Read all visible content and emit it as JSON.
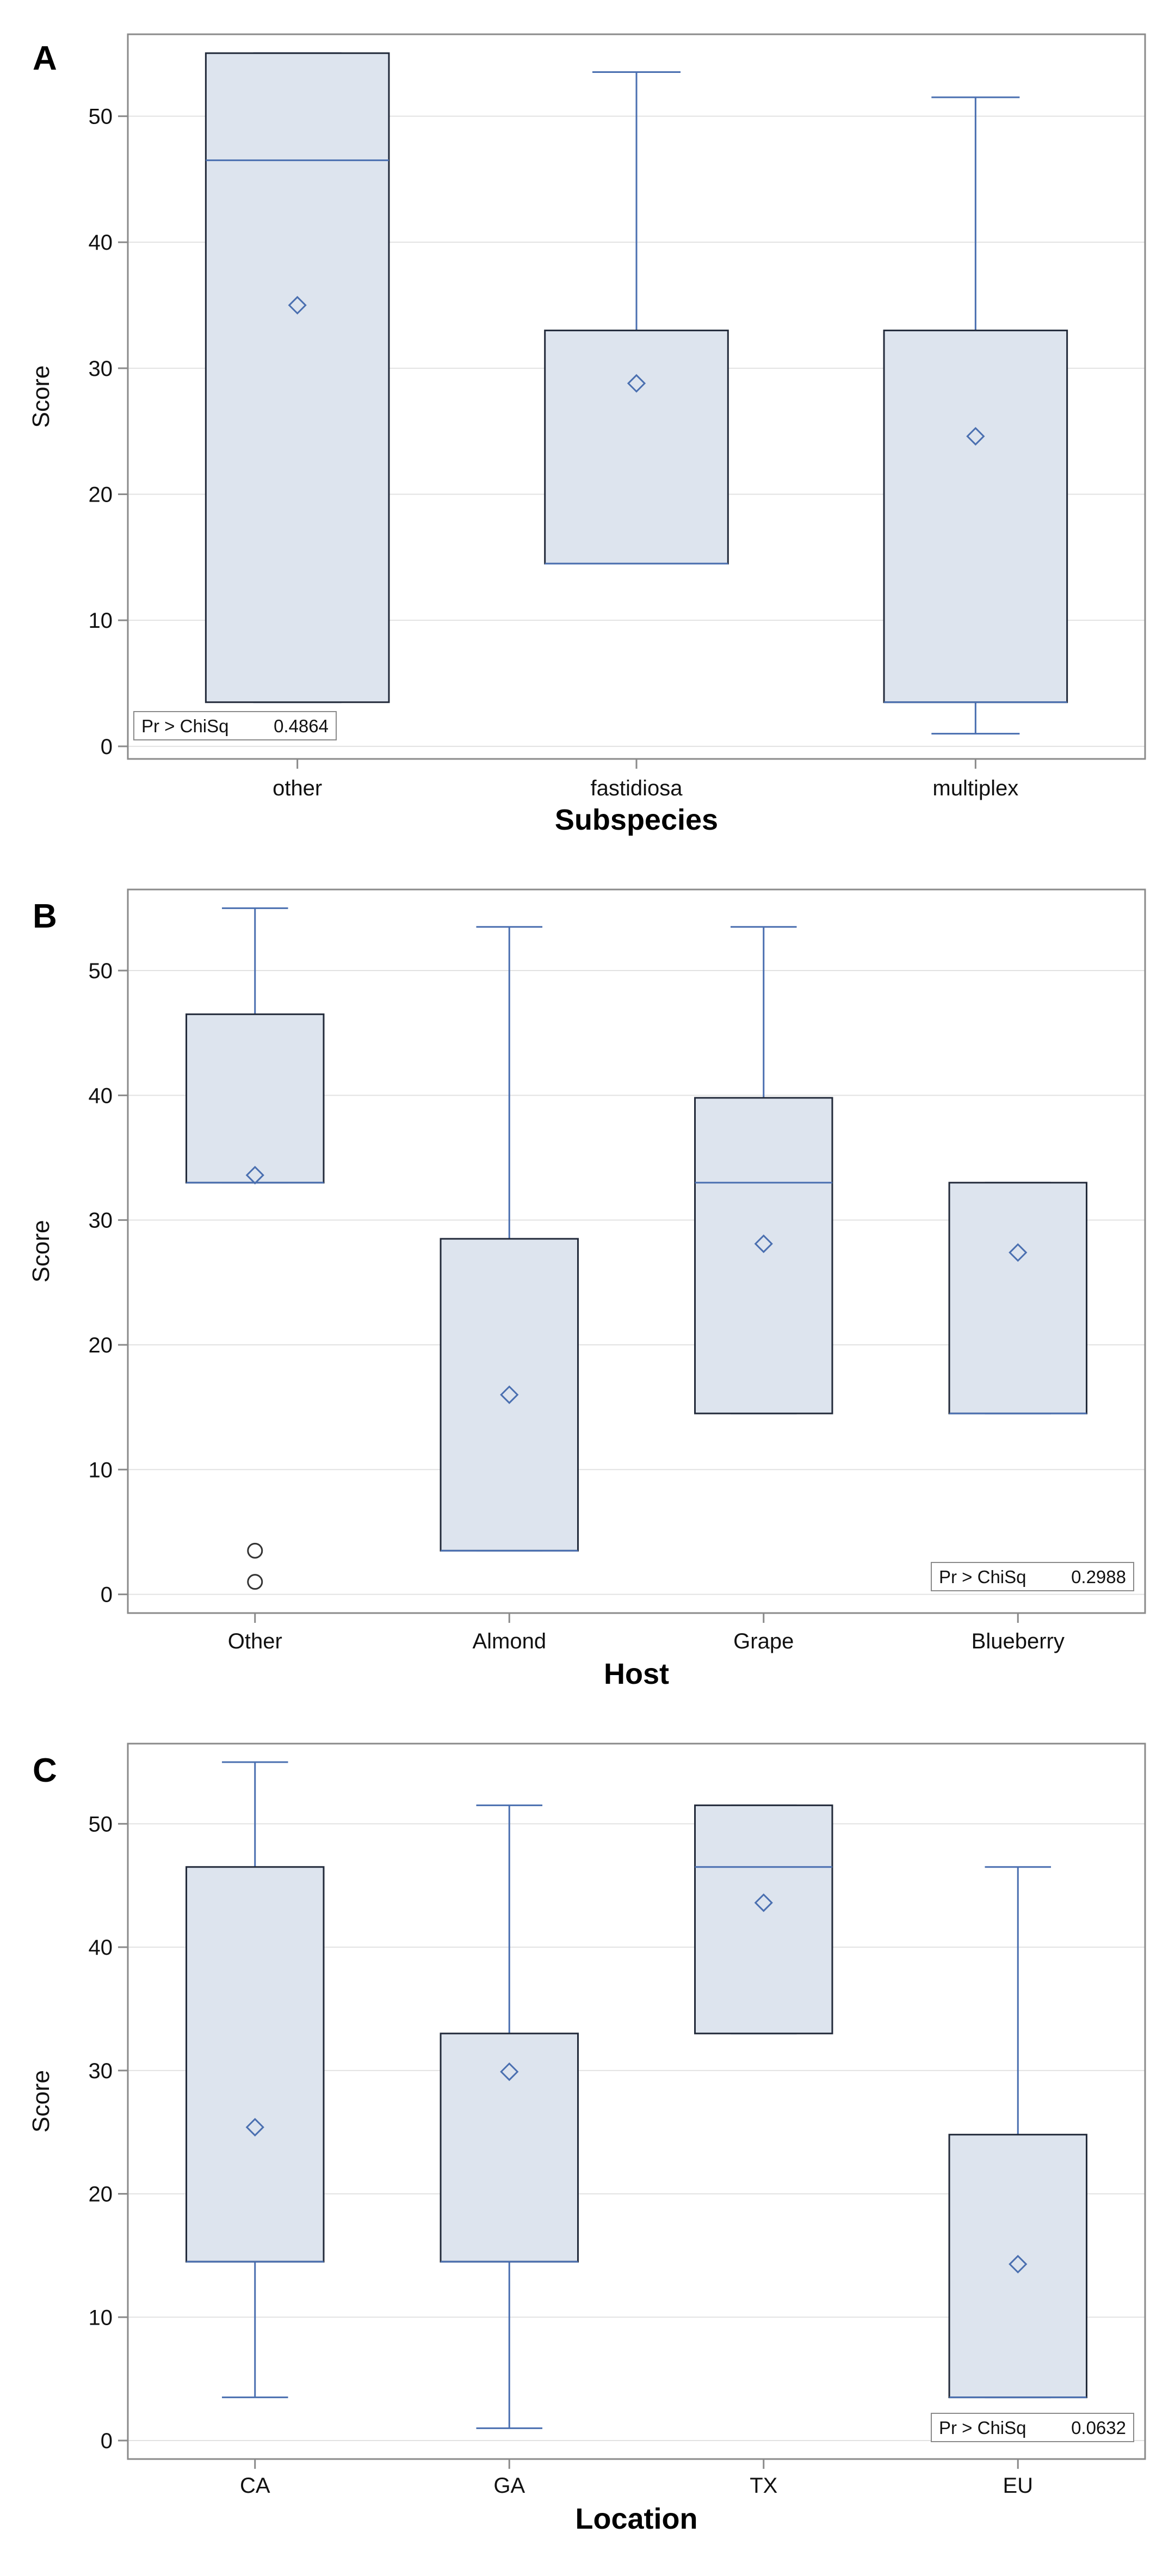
{
  "chart_data": [
    {
      "type": "box",
      "panel_label": "A",
      "xlabel": "Subspecies",
      "ylabel": "Score",
      "ylim": [
        -1,
        56.5
      ],
      "yticks": [
        0,
        10,
        20,
        30,
        40,
        50
      ],
      "grid": true,
      "categories": [
        "other",
        "fastidiosa",
        "multiplex"
      ],
      "boxes": [
        {
          "category": "other",
          "whisker_low": 3.5,
          "q1": 3.5,
          "median": 46.5,
          "q3": 55,
          "whisker_high": 55,
          "mean": 35
        },
        {
          "category": "fastidiosa",
          "whisker_low": 14.5,
          "q1": 14.5,
          "median": 14.5,
          "q3": 33,
          "whisker_high": 53.5,
          "mean": 28.8
        },
        {
          "category": "multiplex",
          "whisker_low": 1,
          "q1": 3.5,
          "median": 3.5,
          "q3": 33,
          "whisker_high": 51.5,
          "mean": 24.6
        }
      ],
      "outliers": [],
      "stat_label": "Pr > ChiSq",
      "stat_value": "0.4864",
      "stat_position": "bottom-left"
    },
    {
      "type": "box",
      "panel_label": "B",
      "xlabel": "Host",
      "ylabel": "Score",
      "ylim": [
        -1.5,
        56.5
      ],
      "yticks": [
        0,
        10,
        20,
        30,
        40,
        50
      ],
      "grid": true,
      "categories": [
        "Other",
        "Almond",
        "Grape",
        "Blueberry"
      ],
      "boxes": [
        {
          "category": "Other",
          "whisker_low": 33,
          "q1": 33,
          "median": 33,
          "q3": 46.5,
          "whisker_high": 55,
          "mean": 33.6
        },
        {
          "category": "Almond",
          "whisker_low": 3.5,
          "q1": 3.5,
          "median": 3.5,
          "q3": 28.5,
          "whisker_high": 53.5,
          "mean": 16
        },
        {
          "category": "Grape",
          "whisker_low": 14.5,
          "q1": 14.5,
          "median": 33,
          "q3": 39.8,
          "whisker_high": 53.5,
          "mean": 28.1
        },
        {
          "category": "Blueberry",
          "whisker_low": 14.5,
          "q1": 14.5,
          "median": 14.5,
          "q3": 33,
          "whisker_high": 33,
          "mean": 27.4
        }
      ],
      "outliers": [
        {
          "category": "Other",
          "value": 3.5
        },
        {
          "category": "Other",
          "value": 1
        }
      ],
      "stat_label": "Pr > ChiSq",
      "stat_value": "0.2988",
      "stat_position": "bottom-right"
    },
    {
      "type": "box",
      "panel_label": "C",
      "xlabel": "Location",
      "ylabel": "Score",
      "ylim": [
        -1.5,
        56.5
      ],
      "yticks": [
        0,
        10,
        20,
        30,
        40,
        50
      ],
      "grid": true,
      "categories": [
        "CA",
        "GA",
        "TX",
        "EU"
      ],
      "boxes": [
        {
          "category": "CA",
          "whisker_low": 3.5,
          "q1": 14.5,
          "median": 14.5,
          "q3": 46.5,
          "whisker_high": 55,
          "mean": 25.4
        },
        {
          "category": "GA",
          "whisker_low": 1,
          "q1": 14.5,
          "median": 14.5,
          "q3": 33,
          "whisker_high": 51.5,
          "mean": 29.9
        },
        {
          "category": "TX",
          "whisker_low": 33,
          "q1": 33,
          "median": 46.5,
          "q3": 51.5,
          "whisker_high": 51.5,
          "mean": 43.6
        },
        {
          "category": "EU",
          "whisker_low": 3.5,
          "q1": 3.5,
          "median": 3.5,
          "q3": 24.8,
          "whisker_high": 46.5,
          "mean": 14.3
        }
      ],
      "outliers": [],
      "stat_label": "Pr > ChiSq",
      "stat_value": "0.0632",
      "stat_position": "bottom-right"
    }
  ],
  "colors": {
    "box_fill": "#dde4ee",
    "box_edge": "#222a3a",
    "line": "#4a6fb0",
    "grid": "#e2e2e2",
    "frame": "#8a8a8a",
    "text": "#111111",
    "outlier": "#333333"
  }
}
